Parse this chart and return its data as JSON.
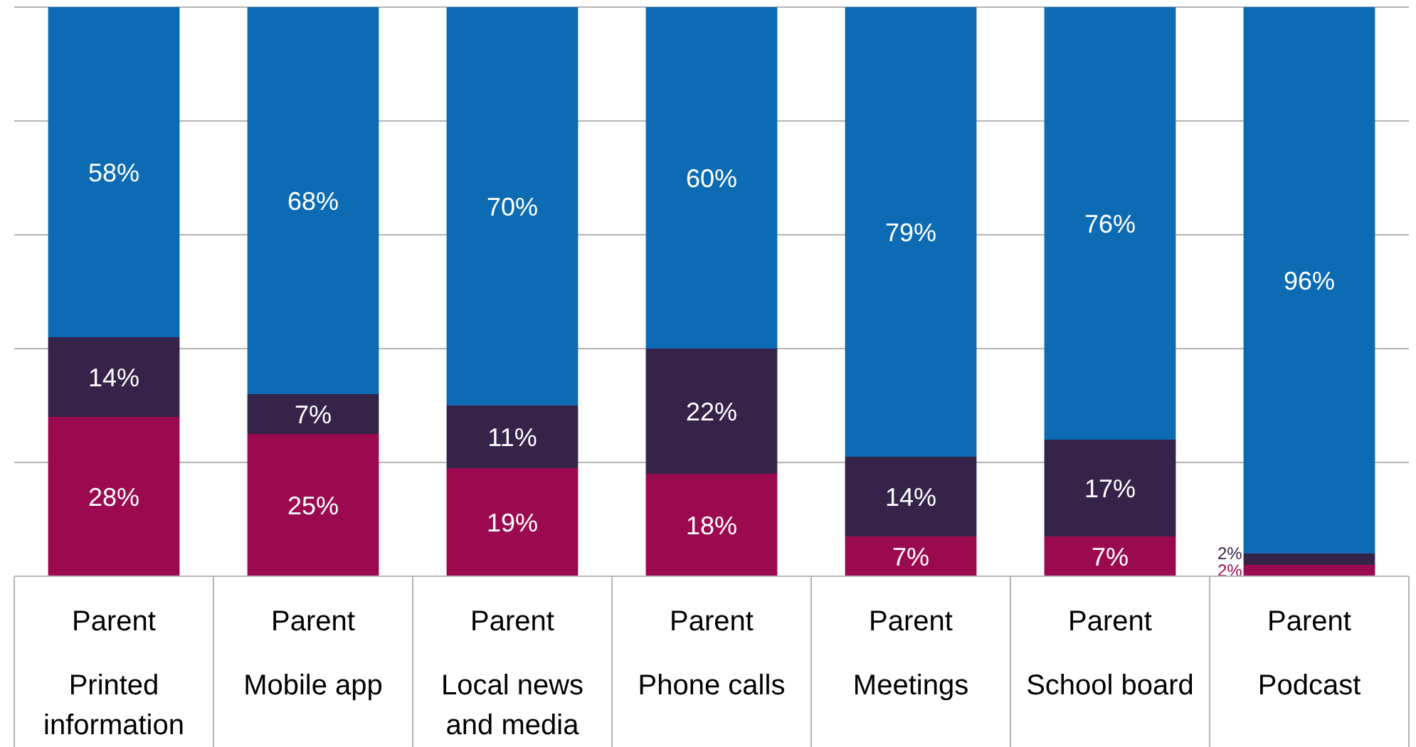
{
  "chart_data": {
    "type": "bar",
    "stacked": true,
    "categories": [
      "Parent\nPrinted information",
      "Parent\nMobile app",
      "Parent\nLocal news and media",
      "Parent\nPhone calls",
      "Parent\nMeetings",
      "Parent\nSchool board",
      "Parent\nPodcast"
    ],
    "series": [
      {
        "color": "#9b0a4f",
        "values": [
          28,
          25,
          19,
          18,
          7,
          7,
          2
        ],
        "value_labels": [
          "28%",
          "25%",
          "19%",
          "18%",
          "7%",
          "7%",
          "2%"
        ]
      },
      {
        "color": "#352349",
        "values": [
          14,
          7,
          11,
          22,
          14,
          17,
          2
        ],
        "value_labels": [
          "14%",
          "7%",
          "11%",
          "22%",
          "14%",
          "17%",
          "2%"
        ]
      },
      {
        "color": "#0c6bb3",
        "values": [
          58,
          68,
          70,
          60,
          79,
          76,
          96
        ],
        "value_labels": [
          "58%",
          "68%",
          "70%",
          "60%",
          "79%",
          "76%",
          "96%"
        ]
      }
    ],
    "ylim": [
      0,
      100
    ],
    "yticks": [
      {
        "value": 0,
        "label": null
      },
      {
        "value": 20,
        "label": null
      },
      {
        "value": 40,
        "label": null
      },
      {
        "value": 60,
        "label": null
      },
      {
        "value": 80,
        "label": null
      },
      {
        "value": 100,
        "label": null
      }
    ],
    "grid": "y",
    "tick_labels": "x"
  }
}
